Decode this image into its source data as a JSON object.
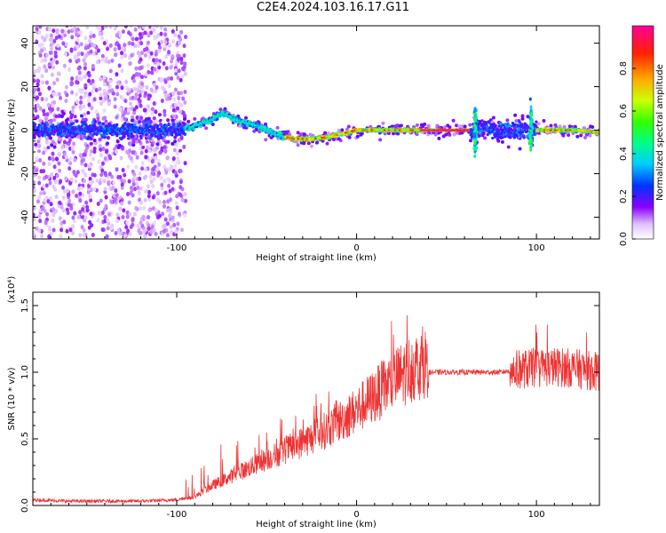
{
  "title": "C2E4.2024.103.16.17.G11",
  "chart_data": [
    {
      "type": "heatmap",
      "xlabel": "Height of straight line (km)",
      "ylabel": "Frequency (Hz)",
      "xlim": [
        -180,
        135
      ],
      "ylim": [
        -50,
        48
      ],
      "xticks": [
        "-100",
        "0",
        "100"
      ],
      "yticks": [
        "-40",
        "-20",
        "0",
        "20",
        "40"
      ],
      "colorbar": {
        "label": "Normalized spectral amplitude",
        "range": [
          0,
          1
        ],
        "ticks": [
          "0.0",
          "0.2",
          "0.4",
          "0.6",
          "0.8"
        ]
      },
      "ridge": {
        "x": [
          -180,
          -150,
          -120,
          -100,
          -90,
          -80,
          -75,
          -65,
          -55,
          -45,
          -35,
          -25,
          -15,
          -5,
          0,
          10,
          20,
          30,
          40,
          60,
          64,
          68,
          75,
          85,
          95,
          100,
          110,
          120,
          135
        ],
        "frequency": [
          0,
          0,
          0,
          0,
          2,
          5,
          8,
          4,
          2,
          -2,
          -4,
          -4,
          -3,
          -1,
          0,
          0,
          0,
          0,
          0,
          0,
          0,
          2,
          0,
          0,
          0,
          0,
          0,
          0,
          -1
        ]
      }
    },
    {
      "type": "line",
      "xlabel": "Height of straight line (km)",
      "ylabel": "SNR (10 * v/v)",
      "y_multiplier": "(x10⁴)",
      "xlim": [
        -180,
        135
      ],
      "ylim": [
        0,
        1.6
      ],
      "xticks": [
        "-100",
        "0",
        "100"
      ],
      "yticks": [
        "0.0",
        "0.5",
        "1.0",
        "1.5"
      ],
      "series": [
        {
          "color": "#ee3333",
          "x": [
            -180,
            -160,
            -140,
            -120,
            -100,
            -90,
            -80,
            -70,
            -60,
            -50,
            -40,
            -30,
            -20,
            -10,
            0,
            10,
            20,
            30,
            40,
            45,
            50,
            60,
            70,
            80,
            85,
            90,
            100,
            110,
            120,
            135
          ],
          "y": [
            0.03,
            0.02,
            0.02,
            0.02,
            0.03,
            0.06,
            0.14,
            0.2,
            0.26,
            0.32,
            0.38,
            0.44,
            0.5,
            0.58,
            0.66,
            0.76,
            0.86,
            0.95,
            1.0,
            1.0,
            1.0,
            1.0,
            1.0,
            1.0,
            1.01,
            1.02,
            1.03,
            1.04,
            1.03,
            1.0
          ]
        }
      ]
    }
  ]
}
